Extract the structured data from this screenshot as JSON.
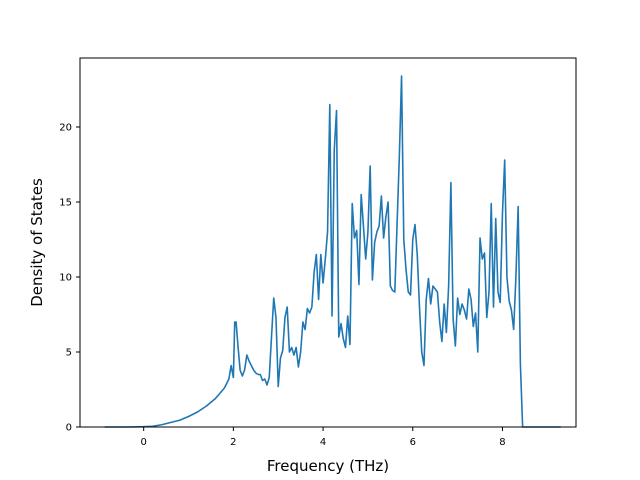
{
  "chart_data": {
    "type": "line",
    "title": "",
    "xlabel": "Frequency (THz)",
    "ylabel": "Density of States",
    "xlim": [
      -1.42,
      9.64
    ],
    "ylim": [
      0,
      24.6
    ],
    "xticks": [
      0,
      2,
      4,
      6,
      8
    ],
    "yticks": [
      0,
      5,
      10,
      15,
      20
    ],
    "grid": false,
    "legend": "none",
    "colors": {
      "line": "#1f77b4",
      "axes": "#000000",
      "background": "#ffffff"
    },
    "series": [
      {
        "x": [
          -0.87,
          -0.6,
          -0.3,
          0.0,
          0.2,
          0.4,
          0.6,
          0.8,
          1.0,
          1.2,
          1.4,
          1.6,
          1.8,
          1.9,
          1.95,
          2.0,
          2.03,
          2.06,
          2.1,
          2.15,
          2.2,
          2.25,
          2.3,
          2.35,
          2.4,
          2.45,
          2.5,
          2.55,
          2.6,
          2.65,
          2.7,
          2.75,
          2.8,
          2.85,
          2.9,
          2.95,
          3.0,
          3.05,
          3.1,
          3.15,
          3.2,
          3.25,
          3.3,
          3.35,
          3.4,
          3.45,
          3.5,
          3.55,
          3.6,
          3.65,
          3.7,
          3.75,
          3.8,
          3.85,
          3.9,
          3.95,
          4.0,
          4.05,
          4.1,
          4.15,
          4.2,
          4.25,
          4.3,
          4.35,
          4.4,
          4.45,
          4.5,
          4.55,
          4.6,
          4.65,
          4.7,
          4.75,
          4.8,
          4.85,
          4.9,
          4.95,
          5.0,
          5.05,
          5.1,
          5.15,
          5.2,
          5.25,
          5.3,
          5.35,
          5.4,
          5.45,
          5.5,
          5.55,
          5.6,
          5.65,
          5.7,
          5.75,
          5.8,
          5.85,
          5.9,
          5.95,
          6.0,
          6.05,
          6.1,
          6.15,
          6.2,
          6.25,
          6.3,
          6.35,
          6.4,
          6.45,
          6.5,
          6.55,
          6.6,
          6.65,
          6.7,
          6.75,
          6.8,
          6.85,
          6.9,
          6.95,
          7.0,
          7.05,
          7.1,
          7.15,
          7.2,
          7.25,
          7.3,
          7.35,
          7.4,
          7.45,
          7.5,
          7.55,
          7.6,
          7.65,
          7.7,
          7.75,
          7.8,
          7.85,
          7.9,
          7.95,
          8.0,
          8.05,
          8.1,
          8.15,
          8.2,
          8.25,
          8.3,
          8.35,
          8.4,
          8.45,
          8.5,
          8.6,
          8.8,
          9.0,
          9.3
        ],
        "y": [
          0,
          0,
          0,
          0.02,
          0.05,
          0.15,
          0.3,
          0.45,
          0.7,
          1.0,
          1.4,
          1.9,
          2.6,
          3.2,
          4.1,
          3.3,
          7.0,
          7.0,
          5.5,
          3.8,
          3.4,
          3.8,
          4.8,
          4.4,
          4.1,
          3.8,
          3.6,
          3.5,
          3.5,
          3.1,
          3.2,
          2.8,
          3.3,
          6.0,
          8.6,
          7.3,
          2.7,
          4.6,
          5.1,
          7.3,
          8.0,
          5.0,
          5.3,
          4.8,
          5.3,
          4.0,
          5.0,
          7.0,
          6.5,
          7.9,
          7.6,
          8.0,
          10.3,
          11.5,
          8.5,
          11.5,
          9.6,
          11.2,
          13.0,
          21.5,
          7.4,
          18.5,
          21.1,
          6.0,
          6.9,
          5.9,
          5.3,
          7.4,
          5.5,
          14.9,
          12.6,
          13.1,
          9.5,
          15.5,
          13.4,
          11.2,
          13.0,
          17.4,
          9.8,
          12.3,
          13.0,
          13.4,
          15.4,
          12.6,
          14.0,
          15.0,
          9.4,
          9.1,
          9.0,
          13.5,
          18.0,
          23.4,
          12.5,
          10.5,
          9.0,
          8.8,
          12.5,
          13.5,
          11.5,
          8.0,
          5.0,
          4.1,
          8.5,
          9.9,
          8.2,
          9.4,
          9.2,
          9.0,
          7.0,
          5.7,
          8.2,
          6.3,
          9.4,
          16.3,
          7.2,
          5.4,
          8.6,
          7.5,
          8.2,
          7.8,
          7.2,
          9.2,
          8.5,
          6.7,
          7.6,
          5.0,
          12.6,
          11.2,
          11.6,
          7.3,
          9.0,
          14.9,
          8.0,
          13.9,
          9.0,
          8.3,
          14.2,
          17.8,
          10.0,
          8.4,
          7.8,
          6.5,
          10.0,
          14.7,
          4.2,
          0,
          0,
          0,
          0,
          0,
          0
        ]
      }
    ]
  }
}
